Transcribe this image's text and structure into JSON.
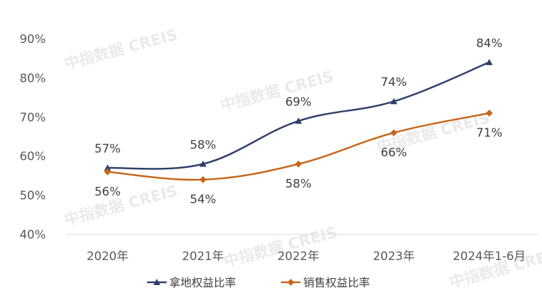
{
  "chart_data": {
    "type": "line",
    "categories": [
      "2020年",
      "2021年",
      "2022年",
      "2023年",
      "2024年1-6月"
    ],
    "series": [
      {
        "name": "拿地权益比率",
        "values": [
          57,
          58,
          69,
          74,
          84
        ],
        "labels": [
          "57%",
          "58%",
          "69%",
          "74%",
          "84%"
        ],
        "color": "#2e3f6b",
        "marker": "triangle"
      },
      {
        "name": "销售权益比率",
        "values": [
          56,
          54,
          58,
          66,
          71
        ],
        "labels": [
          "56%",
          "54%",
          "58%",
          "66%",
          "71%"
        ],
        "color": "#c8651b",
        "marker": "diamond"
      }
    ],
    "ylim": [
      40,
      90
    ],
    "yticks": [
      "40%",
      "50%",
      "60%",
      "70%",
      "80%",
      "90%"
    ],
    "ytick_values": [
      40,
      50,
      60,
      70,
      80,
      90
    ],
    "grid": false,
    "legend_position": "bottom"
  },
  "watermark": "中指数据 CREIS"
}
